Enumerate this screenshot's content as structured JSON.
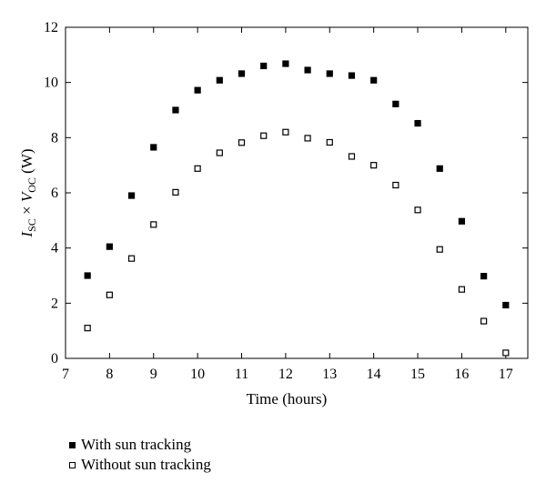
{
  "chart_data": {
    "type": "scatter",
    "xlabel": "Time (hours)",
    "ylabel": {
      "base1": "I",
      "sub1": "SC",
      "mid": " × ",
      "base2": "V",
      "sub2": "OC",
      "unit": " (W)"
    },
    "xlim": [
      7,
      17.5
    ],
    "ylim": [
      0,
      12
    ],
    "xticks": [
      7,
      8,
      9,
      10,
      11,
      12,
      13,
      14,
      15,
      16,
      17
    ],
    "yticks": [
      0,
      2,
      4,
      6,
      8,
      10,
      12
    ],
    "grid": false,
    "legend_position": "bottom-left-outside",
    "series": [
      {
        "name": "With sun tracking",
        "marker": "filled-square",
        "color": "#000000",
        "x": [
          7.5,
          8,
          8.5,
          9,
          9.5,
          10,
          10.5,
          11,
          11.5,
          12,
          12.5,
          13,
          13.5,
          14,
          14.5,
          15,
          15.5,
          16,
          16.5,
          17
        ],
        "y": [
          3.0,
          4.05,
          5.9,
          7.65,
          9.0,
          9.72,
          10.08,
          10.32,
          10.6,
          10.68,
          10.45,
          10.32,
          10.25,
          10.08,
          9.22,
          8.52,
          6.88,
          4.97,
          2.98,
          1.93
        ]
      },
      {
        "name": "Without sun tracking",
        "marker": "open-square",
        "color": "#000000",
        "x": [
          7.5,
          8,
          8.5,
          9,
          9.5,
          10,
          10.5,
          11,
          11.5,
          12,
          12.5,
          13,
          13.5,
          14,
          14.5,
          15,
          15.5,
          16,
          16.5,
          17
        ],
        "y": [
          1.1,
          2.3,
          3.62,
          4.85,
          6.02,
          6.88,
          7.45,
          7.82,
          8.07,
          8.2,
          7.98,
          7.83,
          7.32,
          7.0,
          6.28,
          5.38,
          3.95,
          2.5,
          1.35,
          0.2
        ]
      }
    ]
  }
}
